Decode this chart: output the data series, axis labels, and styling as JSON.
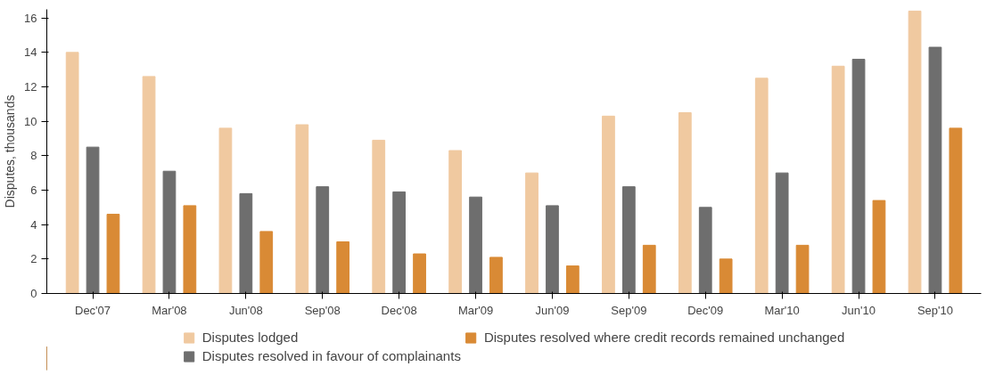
{
  "chart_data": {
    "type": "bar",
    "ylabel": "Disputes, thousands",
    "categories": [
      "Dec'07",
      "Mar'08",
      "Jun'08",
      "Sep'08",
      "Dec'08",
      "Mar'09",
      "Jun'09",
      "Sep'09",
      "Dec'09",
      "Mar'10",
      "Jun'10",
      "Sep'10"
    ],
    "series": [
      {
        "name": "Disputes lodged",
        "color": "#f0c9a0",
        "values": [
          14.0,
          12.6,
          9.6,
          9.8,
          8.9,
          8.3,
          7.0,
          10.3,
          10.5,
          12.5,
          13.2,
          16.4
        ]
      },
      {
        "name": "Disputes resolved in favour of complainants",
        "color": "#6e6e6e",
        "values": [
          8.5,
          7.1,
          5.8,
          6.2,
          5.9,
          5.6,
          5.1,
          6.2,
          5.0,
          7.0,
          13.6,
          14.3
        ]
      },
      {
        "name": "Disputes resolved where credit records remained unchanged",
        "color": "#d98a35",
        "values": [
          4.6,
          5.1,
          3.6,
          3.0,
          2.3,
          2.1,
          1.6,
          2.8,
          2.0,
          2.8,
          5.4,
          9.6
        ]
      }
    ],
    "ylim": [
      0,
      16.5
    ],
    "yticks": [
      0,
      2,
      4,
      6,
      8,
      10,
      12,
      14,
      16
    ],
    "grid": false,
    "legend": "bottom"
  }
}
